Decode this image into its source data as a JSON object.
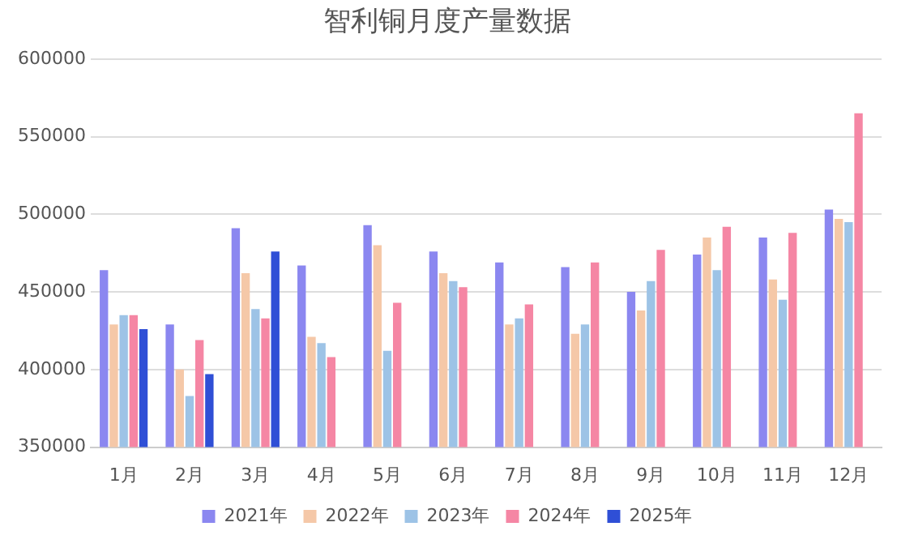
{
  "chart_data": {
    "type": "bar",
    "title": "智利铜月度产量数据",
    "categories": [
      "1月",
      "2月",
      "3月",
      "4月",
      "5月",
      "6月",
      "7月",
      "8月",
      "9月",
      "10月",
      "11月",
      "12月"
    ],
    "series": [
      {
        "name": "2021年",
        "color": "#8b87f0",
        "values": [
          464000,
          429000,
          491000,
          467000,
          493000,
          476000,
          469000,
          466000,
          450000,
          474000,
          485000,
          503000
        ]
      },
      {
        "name": "2022年",
        "color": "#f5c8a8",
        "values": [
          429000,
          400000,
          462000,
          421000,
          480000,
          462000,
          429000,
          423000,
          438000,
          485000,
          458000,
          497000
        ]
      },
      {
        "name": "2023年",
        "color": "#9dc3e6",
        "values": [
          435000,
          383000,
          439000,
          417000,
          412000,
          457000,
          433000,
          429000,
          457000,
          464000,
          445000,
          495000
        ]
      },
      {
        "name": "2024年",
        "color": "#f586a4",
        "values": [
          435000,
          419000,
          433000,
          408000,
          443000,
          453000,
          442000,
          469000,
          477000,
          492000,
          488000,
          565000
        ]
      },
      {
        "name": "2025年",
        "color": "#2f4fd6",
        "values": [
          426000,
          397000,
          476000,
          null,
          null,
          null,
          null,
          null,
          null,
          null,
          null,
          null
        ]
      }
    ],
    "ylim": [
      350000,
      600000
    ],
    "yticks": [
      350000,
      400000,
      450000,
      500000,
      550000,
      600000
    ],
    "grid": "y",
    "legend": "bottom"
  }
}
